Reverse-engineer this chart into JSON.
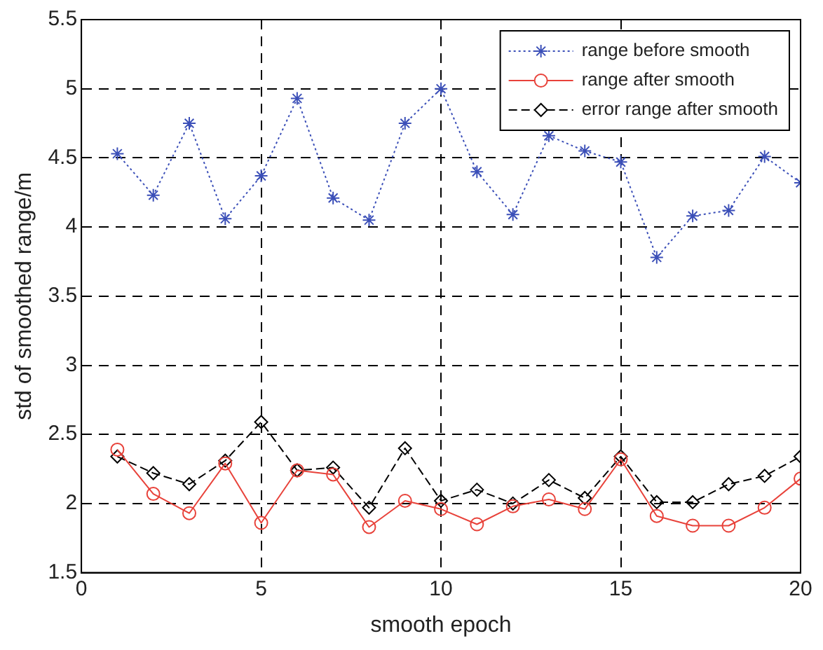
{
  "chart_data": {
    "type": "line",
    "xlabel": "smooth epoch",
    "ylabel": "std of smoothed range/m",
    "x": [
      1,
      2,
      3,
      4,
      5,
      6,
      7,
      8,
      9,
      10,
      11,
      12,
      13,
      14,
      15,
      16,
      17,
      18,
      19,
      20
    ],
    "xlim": [
      0,
      20
    ],
    "xticks": [
      0,
      5,
      10,
      15,
      20
    ],
    "ylim": [
      1.5,
      5.5
    ],
    "yticks": [
      1.5,
      2,
      2.5,
      3,
      3.5,
      4,
      4.5,
      5,
      5.5
    ],
    "grid": true,
    "legend": "top right",
    "series": [
      {
        "name": "range before smooth",
        "color": "#3b4fb8",
        "marker": "cross",
        "line_style": "dotted",
        "values": [
          4.53,
          4.23,
          4.75,
          4.06,
          4.37,
          4.93,
          4.21,
          4.05,
          4.75,
          5.0,
          4.4,
          4.09,
          4.66,
          4.55,
          4.47,
          3.78,
          4.08,
          4.12,
          4.51,
          4.32
        ]
      },
      {
        "name": "range after smooth",
        "color": "#e8423a",
        "marker": "circle",
        "line_style": "solid",
        "values": [
          2.39,
          2.07,
          1.93,
          2.29,
          1.86,
          2.24,
          2.21,
          1.83,
          2.02,
          1.96,
          1.85,
          1.98,
          2.03,
          1.96,
          2.32,
          1.91,
          1.84,
          1.84,
          1.97,
          2.18
        ]
      },
      {
        "name": "error range after smooth",
        "color": "#000000",
        "marker": "diamond",
        "line_style": "dashed",
        "values": [
          2.34,
          2.22,
          2.14,
          2.31,
          2.59,
          2.24,
          2.26,
          1.97,
          2.4,
          2.02,
          2.1,
          2.0,
          2.17,
          2.04,
          2.34,
          2.01,
          2.01,
          2.14,
          2.2,
          2.34
        ]
      }
    ]
  }
}
